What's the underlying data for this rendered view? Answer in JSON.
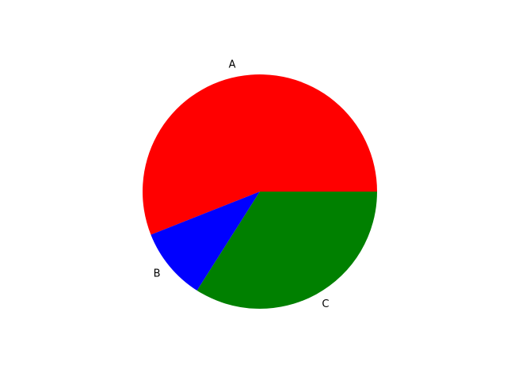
{
  "chart_data": {
    "type": "pie",
    "title": "",
    "categories": [
      "A",
      "B",
      "C"
    ],
    "values": [
      56,
      10,
      34
    ],
    "colors": [
      "#ff0000",
      "#0000ff",
      "#008000"
    ],
    "start_angle": 0,
    "direction": "counterclockwise",
    "legend": "none"
  }
}
